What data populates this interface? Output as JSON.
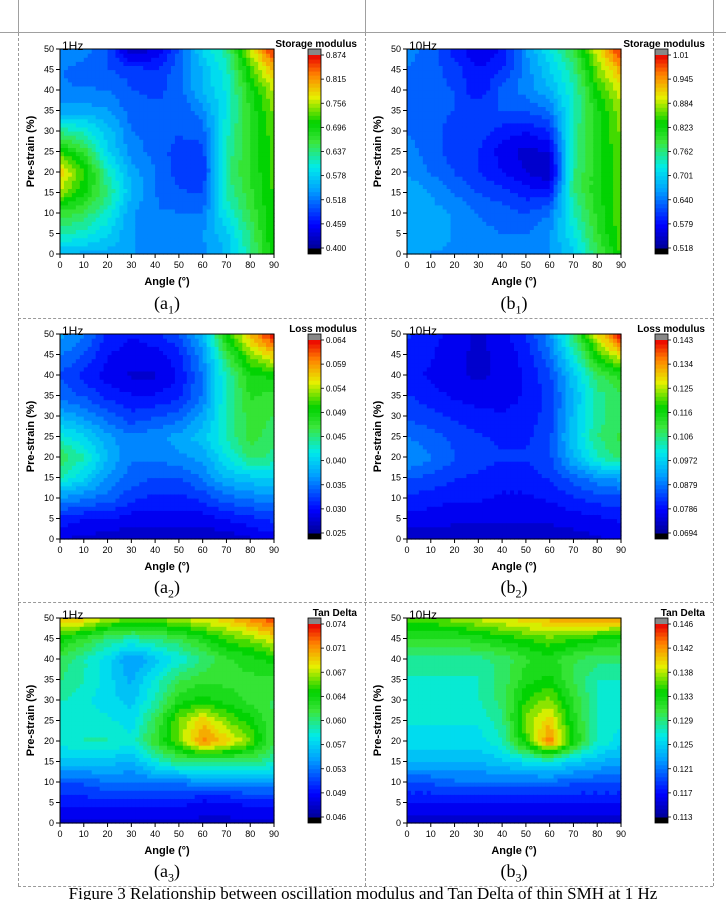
{
  "figure_caption": "Figure 3 Relationship between oscillation modulus and Tan Delta of thin SMH at 1 Hz",
  "chart_data": [
    {
      "type": "heatmap",
      "id": "a1",
      "caption_main": "(a",
      "caption_sub": "1",
      "caption_end": ")",
      "frequency_label": "1Hz",
      "colorbar_title": "Storage modulus",
      "xlabel": "Angle (°)",
      "ylabel": "Pre-strain (%)",
      "x": [
        0,
        10,
        20,
        30,
        40,
        50,
        60,
        70,
        80,
        90
      ],
      "y": [
        0,
        5,
        10,
        15,
        20,
        25,
        30,
        35,
        40,
        45,
        50
      ],
      "xlim": [
        0,
        90
      ],
      "ylim": [
        0,
        50
      ],
      "colorbar_ticks": [
        "0.874",
        "0.815",
        "0.756",
        "0.696",
        "0.637",
        "0.578",
        "0.518",
        "0.459",
        "0.400"
      ],
      "vmin": 0.4,
      "vmax": 0.874,
      "z": [
        [
          0.56,
          0.55,
          0.55,
          0.54,
          0.53,
          0.53,
          0.53,
          0.56,
          0.63,
          0.71
        ],
        [
          0.62,
          0.61,
          0.58,
          0.54,
          0.53,
          0.53,
          0.54,
          0.57,
          0.64,
          0.72
        ],
        [
          0.67,
          0.65,
          0.61,
          0.54,
          0.52,
          0.52,
          0.52,
          0.6,
          0.66,
          0.72
        ],
        [
          0.75,
          0.7,
          0.64,
          0.56,
          0.52,
          0.5,
          0.5,
          0.62,
          0.67,
          0.72
        ],
        [
          0.79,
          0.72,
          0.62,
          0.55,
          0.52,
          0.49,
          0.48,
          0.63,
          0.68,
          0.72
        ],
        [
          0.72,
          0.67,
          0.58,
          0.53,
          0.51,
          0.49,
          0.49,
          0.62,
          0.68,
          0.72
        ],
        [
          0.63,
          0.61,
          0.57,
          0.52,
          0.51,
          0.5,
          0.51,
          0.61,
          0.68,
          0.73
        ],
        [
          0.55,
          0.55,
          0.54,
          0.51,
          0.51,
          0.5,
          0.53,
          0.6,
          0.68,
          0.74
        ],
        [
          0.52,
          0.52,
          0.52,
          0.5,
          0.49,
          0.51,
          0.56,
          0.6,
          0.69,
          0.76
        ],
        [
          0.52,
          0.51,
          0.5,
          0.49,
          0.48,
          0.51,
          0.56,
          0.61,
          0.72,
          0.8
        ],
        [
          0.54,
          0.53,
          0.5,
          0.42,
          0.44,
          0.5,
          0.58,
          0.63,
          0.76,
          0.87
        ]
      ]
    },
    {
      "type": "heatmap",
      "id": "b1",
      "caption_main": "(b",
      "caption_sub": "1",
      "caption_end": ")",
      "frequency_label": "10Hz",
      "colorbar_title": "Storage modulus",
      "xlabel": "Angle (°)",
      "ylabel": "Pre-strain (%)",
      "x": [
        0,
        10,
        20,
        30,
        40,
        50,
        60,
        70,
        80,
        90
      ],
      "y": [
        0,
        5,
        10,
        15,
        20,
        25,
        30,
        35,
        40,
        45,
        50
      ],
      "xlim": [
        0,
        90
      ],
      "ylim": [
        0,
        50
      ],
      "colorbar_ticks": [
        "1.01",
        "0.945",
        "0.884",
        "0.823",
        "0.762",
        "0.701",
        "0.640",
        "0.579",
        "0.518"
      ],
      "vmin": 0.518,
      "vmax": 1.01,
      "z": [
        [
          0.67,
          0.66,
          0.66,
          0.65,
          0.65,
          0.65,
          0.66,
          0.7,
          0.78,
          0.85
        ],
        [
          0.67,
          0.67,
          0.66,
          0.65,
          0.64,
          0.64,
          0.66,
          0.72,
          0.8,
          0.86
        ],
        [
          0.68,
          0.67,
          0.66,
          0.64,
          0.63,
          0.62,
          0.64,
          0.74,
          0.81,
          0.86
        ],
        [
          0.68,
          0.66,
          0.64,
          0.62,
          0.61,
          0.59,
          0.59,
          0.76,
          0.82,
          0.86
        ],
        [
          0.66,
          0.64,
          0.62,
          0.6,
          0.58,
          0.56,
          0.54,
          0.76,
          0.82,
          0.86
        ],
        [
          0.65,
          0.63,
          0.61,
          0.6,
          0.57,
          0.55,
          0.56,
          0.75,
          0.82,
          0.86
        ],
        [
          0.64,
          0.63,
          0.61,
          0.61,
          0.59,
          0.58,
          0.6,
          0.75,
          0.82,
          0.87
        ],
        [
          0.64,
          0.63,
          0.62,
          0.62,
          0.62,
          0.62,
          0.64,
          0.74,
          0.82,
          0.88
        ],
        [
          0.64,
          0.63,
          0.62,
          0.58,
          0.63,
          0.65,
          0.68,
          0.74,
          0.84,
          0.9
        ],
        [
          0.64,
          0.63,
          0.61,
          0.58,
          0.6,
          0.65,
          0.7,
          0.76,
          0.87,
          0.94
        ],
        [
          0.65,
          0.63,
          0.59,
          0.56,
          0.58,
          0.66,
          0.72,
          0.79,
          0.9,
          1.0
        ]
      ]
    },
    {
      "type": "heatmap",
      "id": "a2",
      "caption_main": "(a",
      "caption_sub": "2",
      "caption_end": ")",
      "frequency_label": "1Hz",
      "colorbar_title": "Loss modulus",
      "xlabel": "Angle (°)",
      "ylabel": "Pre-strain (%)",
      "x": [
        0,
        10,
        20,
        30,
        40,
        50,
        60,
        70,
        80,
        90
      ],
      "y": [
        0,
        5,
        10,
        15,
        20,
        25,
        30,
        35,
        40,
        45,
        50
      ],
      "xlim": [
        0,
        90
      ],
      "ylim": [
        0,
        50
      ],
      "colorbar_ticks": [
        "0.064",
        "0.059",
        "0.054",
        "0.049",
        "0.045",
        "0.040",
        "0.035",
        "0.030",
        "0.025"
      ],
      "vmin": 0.025,
      "vmax": 0.064,
      "z": [
        [
          0.028,
          0.028,
          0.027,
          0.027,
          0.027,
          0.027,
          0.027,
          0.027,
          0.028,
          0.029
        ],
        [
          0.031,
          0.03,
          0.03,
          0.029,
          0.029,
          0.029,
          0.029,
          0.03,
          0.031,
          0.032
        ],
        [
          0.036,
          0.035,
          0.034,
          0.032,
          0.031,
          0.031,
          0.032,
          0.034,
          0.035,
          0.036
        ],
        [
          0.043,
          0.04,
          0.036,
          0.034,
          0.033,
          0.033,
          0.035,
          0.038,
          0.039,
          0.04
        ],
        [
          0.046,
          0.043,
          0.038,
          0.035,
          0.035,
          0.036,
          0.037,
          0.041,
          0.045,
          0.044
        ],
        [
          0.042,
          0.04,
          0.037,
          0.035,
          0.036,
          0.037,
          0.039,
          0.043,
          0.047,
          0.045
        ],
        [
          0.038,
          0.036,
          0.034,
          0.032,
          0.033,
          0.034,
          0.037,
          0.043,
          0.047,
          0.046
        ],
        [
          0.034,
          0.033,
          0.031,
          0.03,
          0.03,
          0.031,
          0.035,
          0.043,
          0.048,
          0.047
        ],
        [
          0.033,
          0.031,
          0.029,
          0.028,
          0.028,
          0.03,
          0.035,
          0.043,
          0.049,
          0.05
        ],
        [
          0.035,
          0.033,
          0.03,
          0.029,
          0.029,
          0.031,
          0.036,
          0.046,
          0.053,
          0.057
        ],
        [
          0.037,
          0.035,
          0.031,
          0.03,
          0.031,
          0.033,
          0.038,
          0.05,
          0.058,
          0.064
        ]
      ]
    },
    {
      "type": "heatmap",
      "id": "b2",
      "caption_main": "(b",
      "caption_sub": "2",
      "caption_end": ")",
      "frequency_label": "10Hz",
      "colorbar_title": "Loss modulus",
      "xlabel": "Angle (°)",
      "ylabel": "Pre-strain (%)",
      "x": [
        0,
        10,
        20,
        30,
        40,
        50,
        60,
        70,
        80,
        90
      ],
      "y": [
        0,
        5,
        10,
        15,
        20,
        25,
        30,
        35,
        40,
        45,
        50
      ],
      "xlim": [
        0,
        90
      ],
      "ylim": [
        0,
        50
      ],
      "colorbar_ticks": [
        "0.143",
        "0.134",
        "0.125",
        "0.116",
        "0.106",
        "0.0972",
        "0.0879",
        "0.0786",
        "0.0694"
      ],
      "vmin": 0.0694,
      "vmax": 0.143,
      "z": [
        [
          0.074,
          0.074,
          0.074,
          0.074,
          0.074,
          0.074,
          0.074,
          0.074,
          0.075,
          0.076
        ],
        [
          0.077,
          0.077,
          0.076,
          0.076,
          0.076,
          0.076,
          0.076,
          0.077,
          0.078,
          0.079
        ],
        [
          0.081,
          0.08,
          0.079,
          0.079,
          0.078,
          0.078,
          0.079,
          0.081,
          0.083,
          0.084
        ],
        [
          0.085,
          0.084,
          0.082,
          0.081,
          0.08,
          0.08,
          0.082,
          0.086,
          0.09,
          0.092
        ],
        [
          0.091,
          0.088,
          0.085,
          0.083,
          0.082,
          0.082,
          0.084,
          0.094,
          0.103,
          0.108
        ],
        [
          0.088,
          0.086,
          0.084,
          0.082,
          0.081,
          0.081,
          0.084,
          0.096,
          0.106,
          0.11
        ],
        [
          0.084,
          0.083,
          0.081,
          0.08,
          0.079,
          0.08,
          0.083,
          0.095,
          0.105,
          0.108
        ],
        [
          0.082,
          0.08,
          0.078,
          0.077,
          0.077,
          0.079,
          0.083,
          0.094,
          0.105,
          0.108
        ],
        [
          0.08,
          0.078,
          0.076,
          0.075,
          0.076,
          0.079,
          0.084,
          0.096,
          0.108,
          0.114
        ],
        [
          0.081,
          0.079,
          0.076,
          0.075,
          0.076,
          0.08,
          0.087,
          0.101,
          0.118,
          0.128
        ],
        [
          0.082,
          0.08,
          0.077,
          0.075,
          0.077,
          0.082,
          0.09,
          0.108,
          0.128,
          0.143
        ]
      ]
    },
    {
      "type": "heatmap",
      "id": "a3",
      "caption_main": "(a",
      "caption_sub": "3",
      "caption_end": ")",
      "frequency_label": "1Hz",
      "colorbar_title": "Tan Delta",
      "xlabel": "Angle (°)",
      "ylabel": "Pre-strain (%)",
      "x": [
        0,
        10,
        20,
        30,
        40,
        50,
        60,
        70,
        80,
        90
      ],
      "y": [
        0,
        5,
        10,
        15,
        20,
        25,
        30,
        35,
        40,
        45,
        50
      ],
      "xlim": [
        0,
        90
      ],
      "ylim": [
        0,
        50
      ],
      "colorbar_ticks": [
        "0.074",
        "0.071",
        "0.067",
        "0.064",
        "0.060",
        "0.057",
        "0.053",
        "0.049",
        "0.046"
      ],
      "vmin": 0.046,
      "vmax": 0.074,
      "z": [
        [
          0.048,
          0.048,
          0.048,
          0.048,
          0.048,
          0.048,
          0.048,
          0.048,
          0.048,
          0.048
        ],
        [
          0.05,
          0.05,
          0.05,
          0.05,
          0.05,
          0.05,
          0.049,
          0.049,
          0.05,
          0.05
        ],
        [
          0.052,
          0.052,
          0.053,
          0.053,
          0.053,
          0.053,
          0.054,
          0.054,
          0.054,
          0.054
        ],
        [
          0.056,
          0.056,
          0.056,
          0.055,
          0.058,
          0.06,
          0.06,
          0.06,
          0.06,
          0.059
        ],
        [
          0.058,
          0.059,
          0.059,
          0.058,
          0.062,
          0.066,
          0.071,
          0.069,
          0.066,
          0.061
        ],
        [
          0.058,
          0.058,
          0.058,
          0.057,
          0.061,
          0.066,
          0.069,
          0.066,
          0.064,
          0.061
        ],
        [
          0.059,
          0.058,
          0.057,
          0.056,
          0.059,
          0.063,
          0.064,
          0.063,
          0.062,
          0.061
        ],
        [
          0.06,
          0.059,
          0.057,
          0.055,
          0.058,
          0.061,
          0.062,
          0.062,
          0.062,
          0.062
        ],
        [
          0.061,
          0.059,
          0.057,
          0.054,
          0.056,
          0.058,
          0.06,
          0.062,
          0.063,
          0.064
        ],
        [
          0.064,
          0.062,
          0.06,
          0.059,
          0.06,
          0.061,
          0.063,
          0.065,
          0.066,
          0.068
        ],
        [
          0.07,
          0.069,
          0.067,
          0.066,
          0.066,
          0.067,
          0.068,
          0.069,
          0.071,
          0.073
        ]
      ]
    },
    {
      "type": "heatmap",
      "id": "b3",
      "caption_main": "(b",
      "caption_sub": "3",
      "caption_end": ")",
      "frequency_label": "10Hz",
      "colorbar_title": "Tan Delta",
      "xlabel": "Angle (°)",
      "ylabel": "Pre-strain (%)",
      "x": [
        0,
        10,
        20,
        30,
        40,
        50,
        60,
        70,
        80,
        90
      ],
      "y": [
        0,
        5,
        10,
        15,
        20,
        25,
        30,
        35,
        40,
        45,
        50
      ],
      "xlim": [
        0,
        90
      ],
      "ylim": [
        0,
        50
      ],
      "colorbar_ticks": [
        "0.146",
        "0.142",
        "0.138",
        "0.133",
        "0.129",
        "0.125",
        "0.121",
        "0.117",
        "0.113"
      ],
      "vmin": 0.113,
      "vmax": 0.146,
      "z": [
        [
          0.115,
          0.115,
          0.115,
          0.115,
          0.115,
          0.115,
          0.115,
          0.115,
          0.115,
          0.115
        ],
        [
          0.117,
          0.117,
          0.117,
          0.117,
          0.117,
          0.117,
          0.117,
          0.117,
          0.117,
          0.117
        ],
        [
          0.12,
          0.12,
          0.121,
          0.121,
          0.121,
          0.121,
          0.121,
          0.12,
          0.12,
          0.12
        ],
        [
          0.124,
          0.124,
          0.124,
          0.124,
          0.125,
          0.126,
          0.127,
          0.125,
          0.124,
          0.123
        ],
        [
          0.126,
          0.126,
          0.126,
          0.126,
          0.128,
          0.135,
          0.143,
          0.134,
          0.128,
          0.126
        ],
        [
          0.127,
          0.127,
          0.127,
          0.127,
          0.129,
          0.137,
          0.14,
          0.133,
          0.128,
          0.127
        ],
        [
          0.128,
          0.128,
          0.128,
          0.128,
          0.13,
          0.135,
          0.137,
          0.132,
          0.128,
          0.128
        ],
        [
          0.128,
          0.128,
          0.128,
          0.128,
          0.13,
          0.133,
          0.134,
          0.131,
          0.128,
          0.128
        ],
        [
          0.129,
          0.129,
          0.129,
          0.129,
          0.13,
          0.132,
          0.133,
          0.131,
          0.13,
          0.13
        ],
        [
          0.132,
          0.132,
          0.132,
          0.133,
          0.134,
          0.135,
          0.136,
          0.135,
          0.134,
          0.133
        ],
        [
          0.136,
          0.136,
          0.137,
          0.138,
          0.139,
          0.14,
          0.141,
          0.142,
          0.142,
          0.142
        ]
      ]
    }
  ]
}
